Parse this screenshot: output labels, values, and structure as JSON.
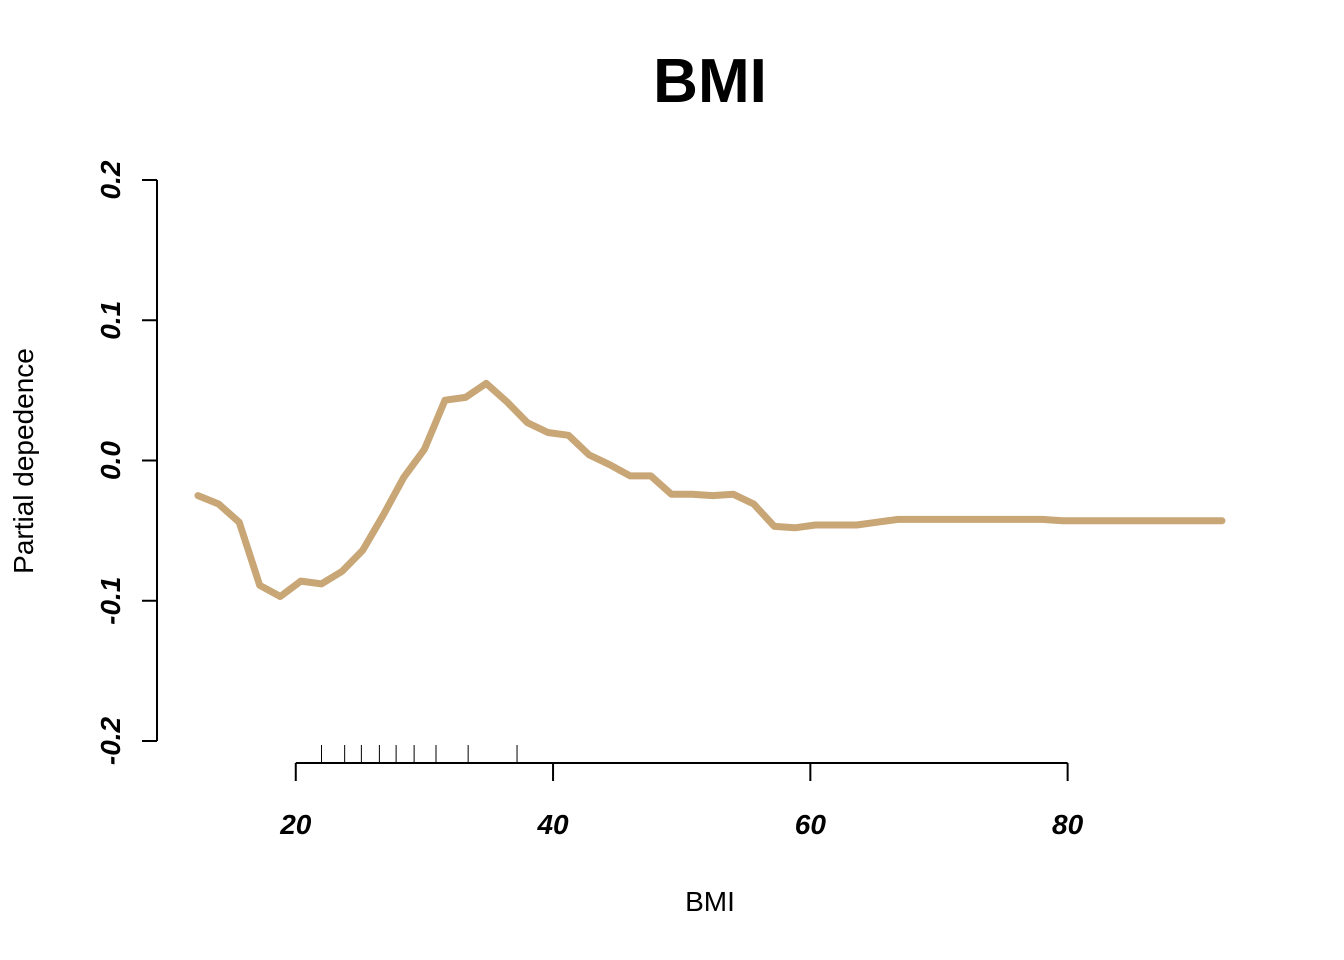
{
  "chart_data": {
    "type": "line",
    "title": "BMI",
    "xlabel": "BMI",
    "ylabel": "Partial depedence",
    "xlim": [
      12.4,
      92.0
    ],
    "ylim": [
      -0.2,
      0.2
    ],
    "x_ticks": [
      20,
      40,
      60,
      80
    ],
    "x_tick_labels": [
      "20",
      "40",
      "60",
      "80"
    ],
    "y_ticks": [
      -0.2,
      -0.1,
      0.0,
      0.1,
      0.2
    ],
    "y_tick_labels": [
      "-0.2",
      "-0.1",
      "0.0",
      "0.1",
      "0.2"
    ],
    "line_color": "#C8A676",
    "rug_x": [
      22.0,
      23.8,
      25.1,
      26.5,
      27.8,
      29.2,
      30.9,
      33.4,
      37.2
    ],
    "series": [
      {
        "x": [
          12.4,
          14.0,
          15.6,
          17.2,
          18.8,
          20.4,
          22.0,
          23.6,
          25.2,
          26.8,
          28.4,
          30.0,
          31.6,
          33.2,
          34.8,
          36.4,
          38.0,
          39.6,
          41.2,
          42.8,
          44.4,
          46.0,
          47.6,
          49.2,
          50.8,
          52.4,
          54.0,
          55.6,
          57.2,
          58.8,
          60.4,
          62.0,
          63.6,
          65.2,
          66.8,
          68.4,
          70.0,
          71.6,
          73.2,
          74.8,
          76.4,
          78.0,
          79.6,
          81.2,
          82.8,
          84.4,
          86.0,
          87.6,
          89.2,
          92.0
        ],
        "values": [
          -0.025,
          -0.031,
          -0.044,
          -0.089,
          -0.097,
          -0.086,
          -0.088,
          -0.079,
          -0.064,
          -0.039,
          -0.012,
          0.008,
          0.043,
          0.045,
          0.055,
          0.042,
          0.027,
          0.02,
          0.018,
          0.004,
          -0.003,
          -0.011,
          -0.011,
          -0.024,
          -0.024,
          -0.025,
          -0.024,
          -0.031,
          -0.047,
          -0.048,
          -0.046,
          -0.046,
          -0.046,
          -0.044,
          -0.042,
          -0.042,
          -0.042,
          -0.042,
          -0.042,
          -0.042,
          -0.042,
          -0.042,
          -0.043,
          -0.043,
          -0.043,
          -0.043,
          -0.043,
          -0.043,
          -0.043,
          -0.043
        ]
      }
    ]
  }
}
